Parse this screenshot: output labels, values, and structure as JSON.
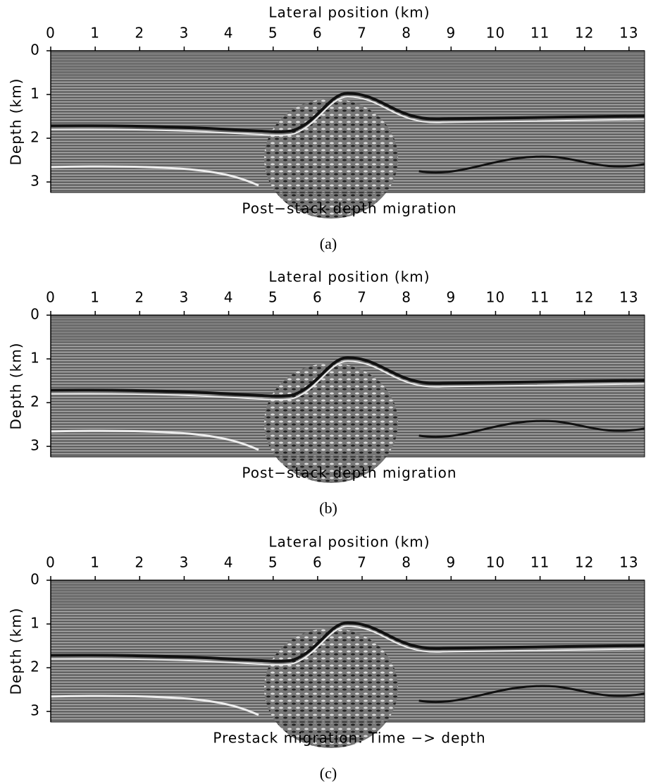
{
  "chart_data": [
    {
      "type": "seismic",
      "xlabel": "Lateral position (km)",
      "ylabel": "Depth (km)",
      "title": "Post−stack depth migration",
      "panel_label": "(a)",
      "xlim": [
        0,
        13.35
      ],
      "ylim": [
        0,
        3.24
      ],
      "xticks": [
        0,
        1,
        2,
        3,
        4,
        5,
        6,
        7,
        8,
        9,
        10,
        11,
        12,
        13
      ],
      "yticks": [
        0,
        1,
        2,
        3
      ]
    },
    {
      "type": "seismic",
      "xlabel": "Lateral position (km)",
      "ylabel": "Depth (km)",
      "title": "Post−stack depth migration",
      "panel_label": "(b)",
      "xlim": [
        0,
        13.35
      ],
      "ylim": [
        0,
        3.24
      ],
      "xticks": [
        0,
        1,
        2,
        3,
        4,
        5,
        6,
        7,
        8,
        9,
        10,
        11,
        12,
        13
      ],
      "yticks": [
        0,
        1,
        2,
        3
      ]
    },
    {
      "type": "seismic",
      "xlabel": "Lateral position (km)",
      "ylabel": "Depth (km)",
      "title": "Prestack migration: Time −> depth",
      "panel_label": "(c)",
      "xlim": [
        0,
        13.35
      ],
      "ylim": [
        0,
        3.24
      ],
      "xticks": [
        0,
        1,
        2,
        3,
        4,
        5,
        6,
        7,
        8,
        9,
        10,
        11,
        12,
        13
      ],
      "yticks": [
        0,
        1,
        2,
        3
      ]
    }
  ]
}
